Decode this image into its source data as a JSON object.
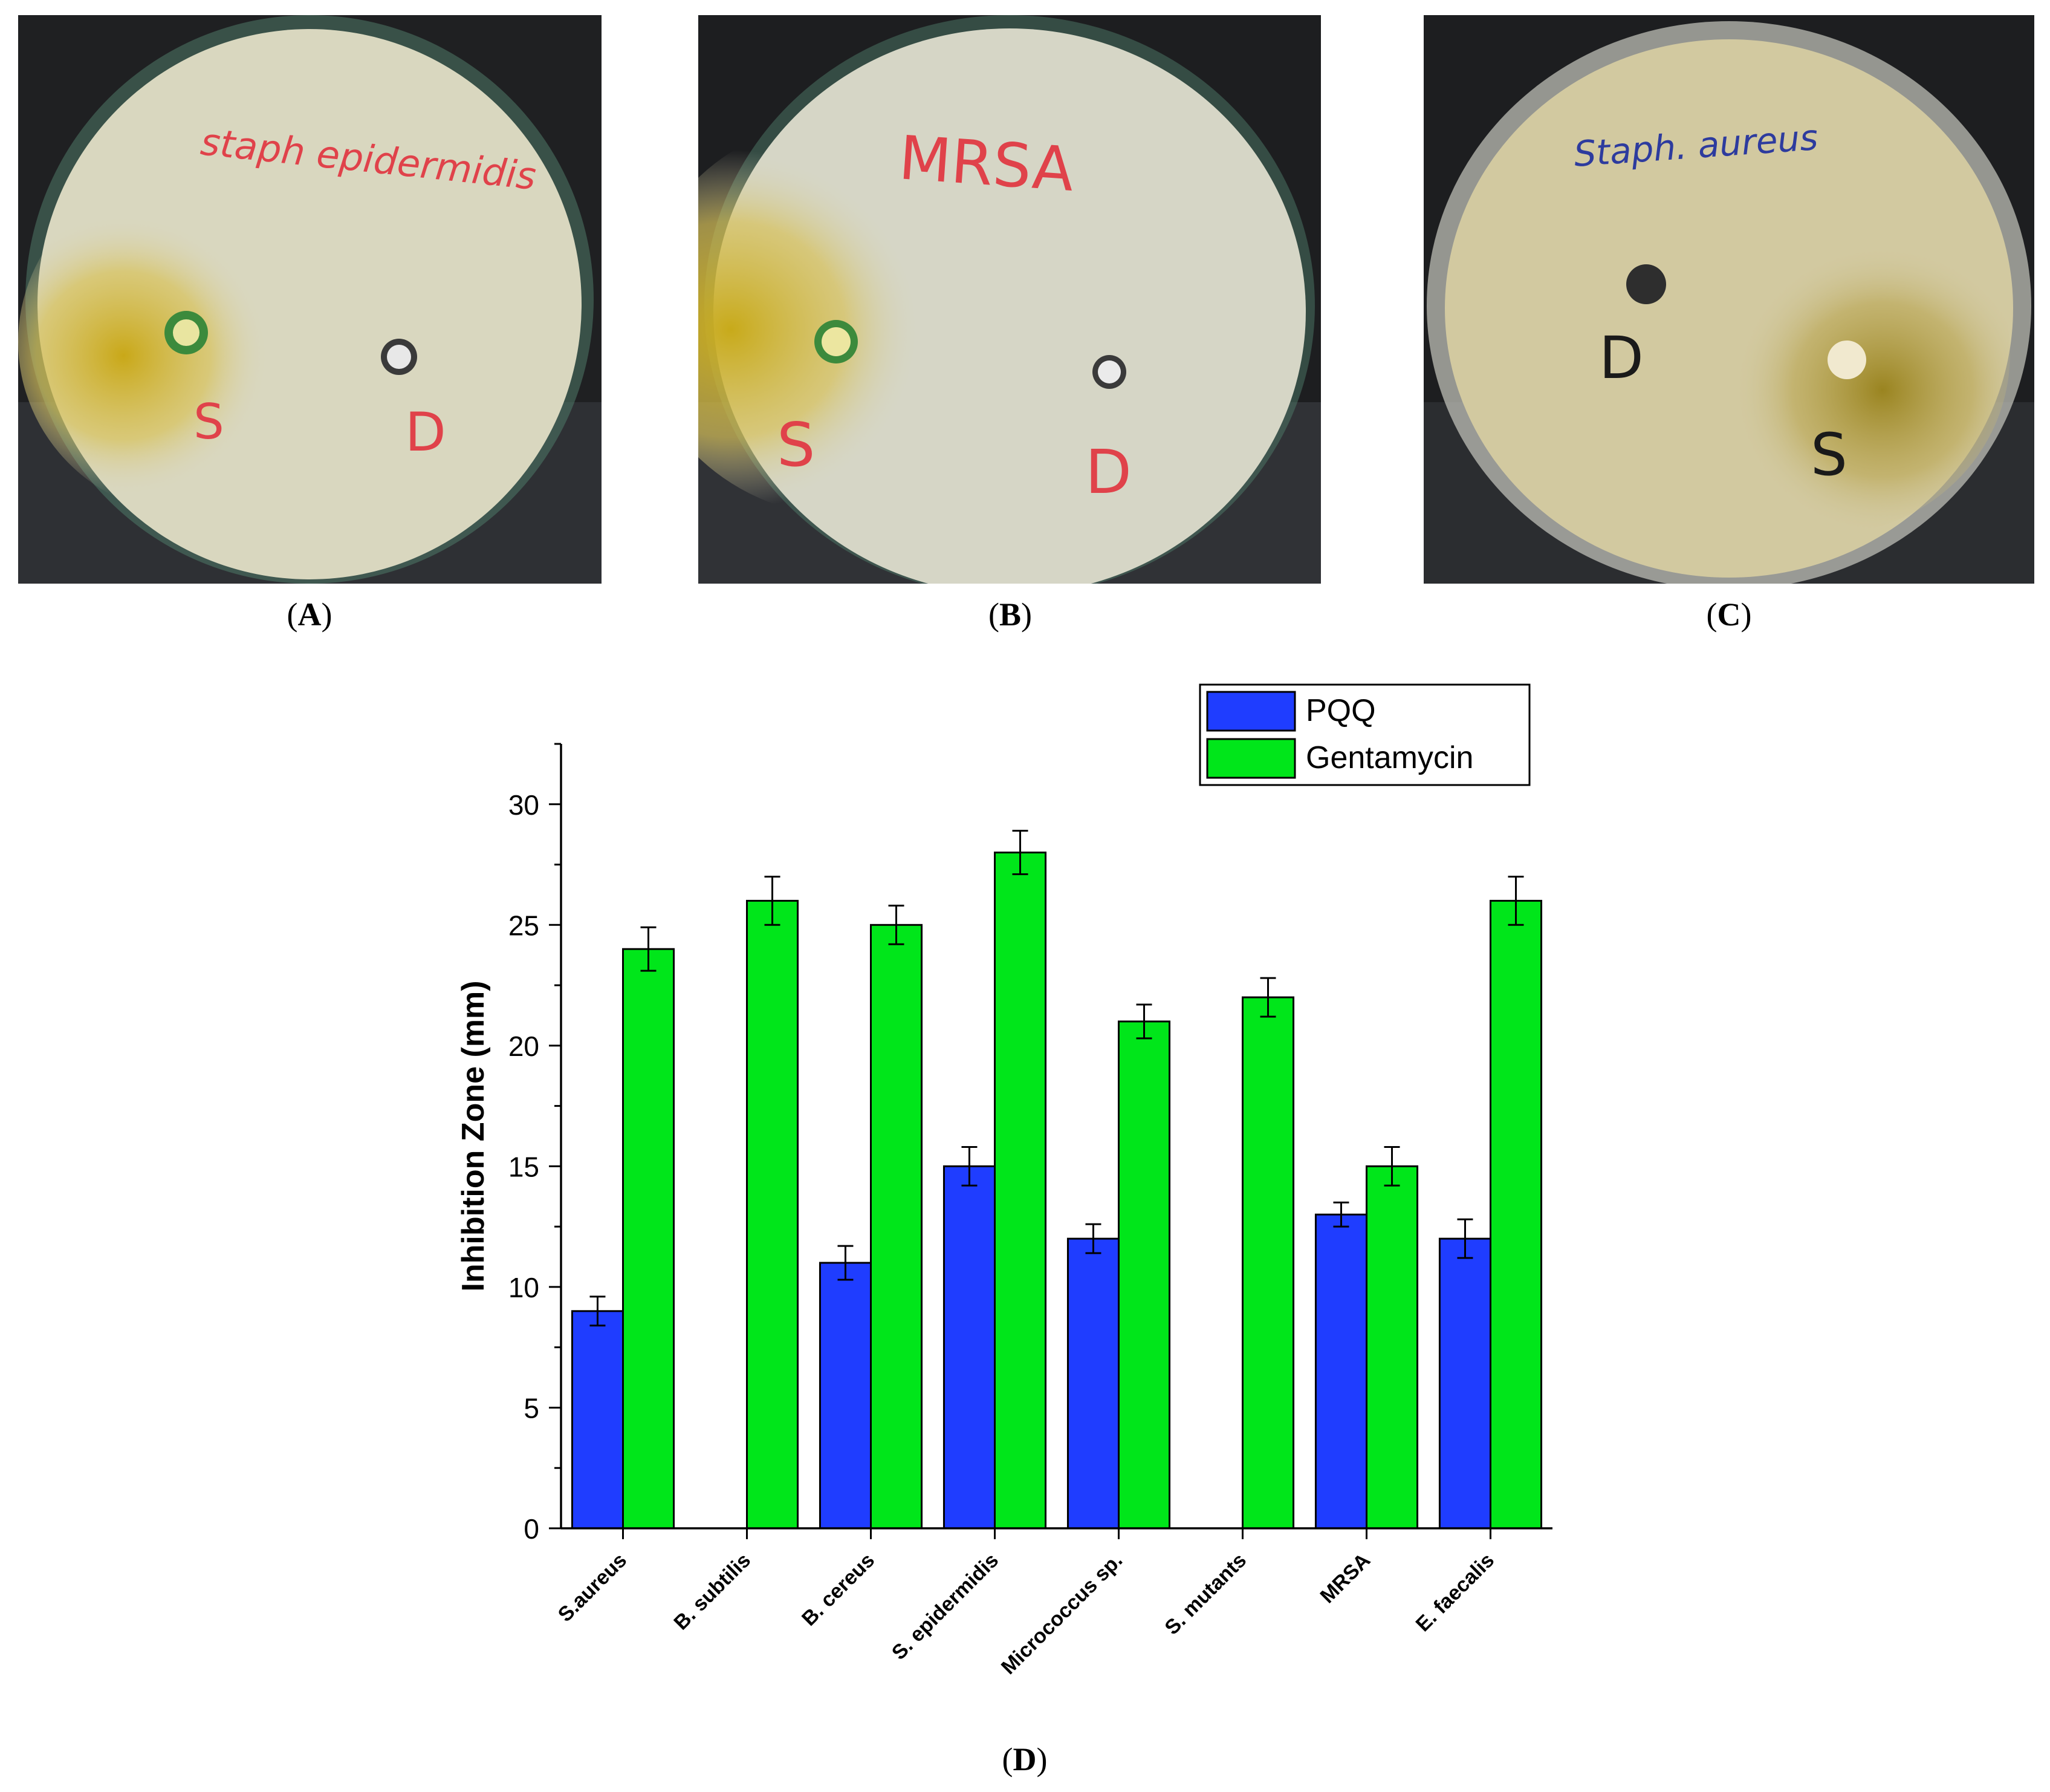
{
  "panels": {
    "a": {
      "label": "A",
      "plate_text": "staph epidermidis",
      "well_labels": [
        "S",
        "D"
      ],
      "plate_color": "#d9d7bf",
      "zone_color": "#c9a818",
      "ink_color": "#e0424a"
    },
    "b": {
      "label": "B",
      "plate_text": "MRSA",
      "well_labels": [
        "S",
        "D"
      ],
      "plate_color": "#d6d6c6",
      "zone_color": "#c8aa1a",
      "ink_color": "#e0424a"
    },
    "c": {
      "label": "C",
      "plate_text": "Staph. aureus",
      "well_labels": [
        "D",
        "S"
      ],
      "plate_color": "#d2c9a0",
      "zone_color": "#9a8420",
      "ink_color": "#2d3b9e"
    },
    "d": {
      "label": "D"
    }
  },
  "chart_data": {
    "type": "bar",
    "categories": [
      "S.aureus",
      "B. subtilis",
      "B. cereus",
      "S. epidermidis",
      "Micrococcus sp.",
      "S. mutants",
      "MRSA",
      "E. faecalis"
    ],
    "series": [
      {
        "name": "PQQ",
        "color": "#1f3dff",
        "values": [
          9,
          0,
          11,
          15,
          12,
          0,
          13,
          12
        ],
        "errors": [
          0.6,
          0,
          0.7,
          0.8,
          0.6,
          0,
          0.5,
          0.8
        ]
      },
      {
        "name": "Gentamycin",
        "color": "#00e61a",
        "values": [
          24,
          26,
          25,
          28,
          21,
          22,
          15,
          26
        ],
        "errors": [
          0.9,
          1.0,
          0.8,
          0.9,
          0.7,
          0.8,
          0.8,
          1.0
        ]
      }
    ],
    "ylabel": "Inhibition Zone (mm)",
    "xlabel": "",
    "ylim": [
      0,
      32.5
    ],
    "yticks": [
      0,
      5,
      10,
      15,
      20,
      25,
      30
    ],
    "legend_position": "top-right",
    "grid": false
  }
}
